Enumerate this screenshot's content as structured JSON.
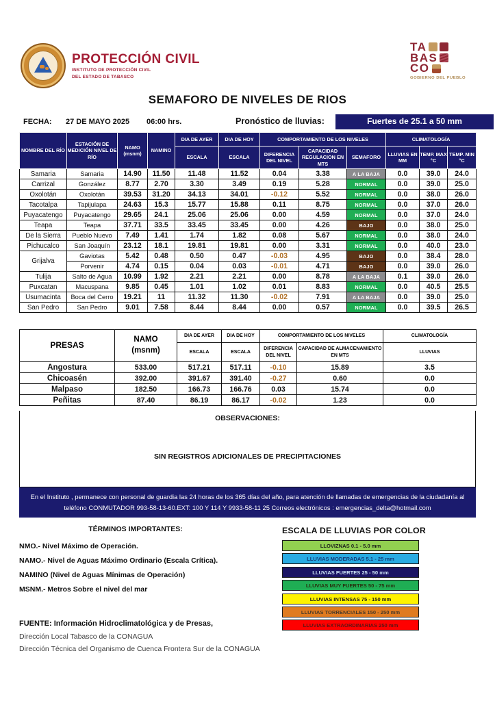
{
  "header": {
    "brand_title": "PROTECCIÓN CIVIL",
    "brand_subtitle1": "INSTITUTO DE PROTECCIÓN CIVIL",
    "brand_subtitle2": "DEL ESTADO DE TABASCO",
    "tabasco_lines": {
      "l1": "TA",
      "l2": "BAS",
      "l3": "CO"
    },
    "tabasco_caption": "GOBIERNO DEL PUEBLO",
    "title": "SEMAFORO DE NIVELES DE RIOS"
  },
  "date_bar": {
    "fecha_label": "FECHA:",
    "fecha_value": "27  DE MAYO  2025",
    "time_value": "06:00 hrs.",
    "pronostico_label": "Pronóstico de lluvias:",
    "pronostico_value": "Fuertes de 25.1 a 50 mm"
  },
  "rivers_table": {
    "headers": {
      "name": "NOMBRE DEL RÍO",
      "station": "ESTACIÓN DE MEDICIÓN NIVEL DE RÍO",
      "namo_1": "NAMO",
      "namo_2": "(msnm)",
      "namino": "NAMINO",
      "dia_ayer": "DIA DE AYER",
      "dia_hoy": "DIA DE HOY",
      "escala": "ESCALA",
      "comportamiento": "COMPORTAMIENTO DE LOS NIVELES",
      "climatologia": "CLIMATOLOGÍA",
      "diferencia": "DIFERENCIA DEL NIVEL",
      "capacidad": "CAPACIDAD REGULACION EN MTS",
      "semaforo": "SEMAFORO",
      "lluvias": "LLUVIAS EN MM",
      "temp_max": "TEMP. MAX °C",
      "temp_min": "TEMP.  MIN °C"
    },
    "rows": [
      {
        "name": "Samaria",
        "station": "Samaria",
        "namo": "14.90",
        "namino": "11.50",
        "ayer": "11.48",
        "hoy": "11.52",
        "dif": "0.04",
        "cap": "3.38",
        "semaforo": "A LA BAJA",
        "lluvia": "0.0",
        "tmax": "39.0",
        "tmin": "24.0"
      },
      {
        "name": "Carrizal",
        "station": "González",
        "namo": "8.77",
        "namino": "2.70",
        "ayer": "3.30",
        "hoy": "3.49",
        "dif": "0.19",
        "cap": "5.28",
        "semaforo": "NORMAL",
        "lluvia": "0.0",
        "tmax": "39.0",
        "tmin": "25.0"
      },
      {
        "name": "Oxolotán",
        "station": "Oxolotán",
        "namo": "39.53",
        "namino": "31.20",
        "ayer": "34.13",
        "hoy": "34.01",
        "dif": "-0.12",
        "cap": "5.52",
        "semaforo": "NORMAL",
        "lluvia": "0.0",
        "tmax": "38.0",
        "tmin": "26.0"
      },
      {
        "name": "Tacotalpa",
        "station": "Tapijulapa",
        "namo": "24.63",
        "namino": "15.3",
        "ayer": "15.77",
        "hoy": "15.88",
        "dif": "0.11",
        "cap": "8.75",
        "semaforo": "NORMAL",
        "lluvia": "0.0",
        "tmax": "37.0",
        "tmin": "26.0"
      },
      {
        "name": "Puyacatengo",
        "station": "Puyacatengo",
        "namo": "29.65",
        "namino": "24.1",
        "ayer": "25.06",
        "hoy": "25.06",
        "dif": "0.00",
        "cap": "4.59",
        "semaforo": "NORMAL",
        "lluvia": "0.0",
        "tmax": "37.0",
        "tmin": "24.0"
      },
      {
        "name": "Teapa",
        "station": "Teapa",
        "namo": "37.71",
        "namino": "33.5",
        "ayer": "33.45",
        "hoy": "33.45",
        "dif": "0.00",
        "cap": "4.26",
        "semaforo": "BAJO",
        "lluvia": "0.0",
        "tmax": "38.0",
        "tmin": "25.0"
      },
      {
        "name": "De la Sierra",
        "station": "Pueblo Nuevo",
        "namo": "7.49",
        "namino": "1.41",
        "ayer": "1.74",
        "hoy": "1.82",
        "dif": "0.08",
        "cap": "5.67",
        "semaforo": "NORMAL",
        "lluvia": "0.0",
        "tmax": "38.0",
        "tmin": "24.0"
      },
      {
        "name": "Pichucalco",
        "station": "San Joaquín",
        "namo": "23.12",
        "namino": "18.1",
        "ayer": "19.81",
        "hoy": "19.81",
        "dif": "0.00",
        "cap": "3.31",
        "semaforo": "NORMAL",
        "lluvia": "0.0",
        "tmax": "40.0",
        "tmin": "23.0"
      },
      {
        "name": "Grijalva",
        "name_rowspan": 2,
        "station": "Gaviotas",
        "namo": "5.42",
        "namino": "0.48",
        "ayer": "0.50",
        "hoy": "0.47",
        "dif": "-0.03",
        "cap": "4.95",
        "semaforo": "BAJO",
        "lluvia": "0.0",
        "tmax": "38.4",
        "tmin": "28.0"
      },
      {
        "name": null,
        "station": "Porvenir",
        "namo": "4.74",
        "namino": "0.15",
        "ayer": "0.04",
        "hoy": "0.03",
        "dif": "-0.01",
        "cap": "4.71",
        "semaforo": "BAJO",
        "lluvia": "0.0",
        "tmax": "39.0",
        "tmin": "26.0"
      },
      {
        "name": "Tulija",
        "station": "Salto de Agua",
        "namo": "10.99",
        "namino": "1.92",
        "ayer": "2.21",
        "hoy": "2.21",
        "dif": "0.00",
        "cap": "8.78",
        "semaforo": "A LA BAJA",
        "lluvia": "0.1",
        "tmax": "39.0",
        "tmin": "26.0"
      },
      {
        "name": "Puxcatan",
        "station": "Macuspana",
        "namo": "9.85",
        "namino": "0.45",
        "ayer": "1.01",
        "hoy": "1.02",
        "dif": "0.01",
        "cap": "8.83",
        "semaforo": "NORMAL",
        "lluvia": "0.0",
        "tmax": "40.5",
        "tmin": "25.5"
      },
      {
        "name": "Usumacinta",
        "station": "Boca del Cerro",
        "namo": "19.21",
        "namino": "11",
        "ayer": "11.32",
        "hoy": "11.30",
        "dif": "-0.02",
        "cap": "7.91",
        "semaforo": "A LA BAJA",
        "lluvia": "0.0",
        "tmax": "39.0",
        "tmin": "25.0"
      },
      {
        "name": "San Pedro",
        "station": "San Pedro",
        "namo": "9.01",
        "namino": "7.58",
        "ayer": "8.44",
        "hoy": "8.44",
        "dif": "0.00",
        "cap": "0.57",
        "semaforo": "NORMAL",
        "lluvia": "0.0",
        "tmax": "39.5",
        "tmin": "26.5"
      }
    ]
  },
  "presas_table": {
    "headers": {
      "presas": "PRESAS",
      "namo_1": "NAMO",
      "namo_2": "(msnm)",
      "dia_ayer": "DIA DE AYER",
      "dia_hoy": "DIA DE HOY",
      "escala": "ESCALA",
      "comportamiento": "COMPORTAMIENTO DE LOS NIVELES",
      "diferencia": "DIFERENCIA DEL NIVEL",
      "capacidad": "CAPACIDAD DE ALMACENAMIENTO EN MTS",
      "climatologia": "CLIMATOLOGÍA",
      "lluvias": "LLUVIAS"
    },
    "rows": [
      {
        "name": "Angostura",
        "namo": "533.00",
        "ayer": "517.21",
        "hoy": "517.11",
        "dif": "-0.10",
        "cap": "15.89",
        "lluvia": "3.5"
      },
      {
        "name": "Chicoasén",
        "namo": "392.00",
        "ayer": "391.67",
        "hoy": "391.40",
        "dif": "-0.27",
        "cap": "0.60",
        "lluvia": "0.0"
      },
      {
        "name": "Malpaso",
        "namo": "182.50",
        "ayer": "166.73",
        "hoy": "166.76",
        "dif": "0.03",
        "cap": "15.74",
        "lluvia": "0.0"
      },
      {
        "name": "Peñitas",
        "namo": "87.40",
        "ayer": "86.19",
        "hoy": "86.17",
        "dif": "-0.02",
        "cap": "1.23",
        "lluvia": "0.0"
      }
    ]
  },
  "observaciones": {
    "title": "OBSERVACIONES:",
    "text": "SIN REGISTROS ADICIONALES DE PRECIPITACIONES"
  },
  "notice": "En el Instituto , permanece con personal de guardia las 24 horas de los 365 días del año, para atención de llamadas de emergencias de la ciudadanía al teléfono  CONMUTADOR  993-58-13-60.EXT: 100 Y 114  Y 9933-58-11 25   Correos electrónicos : emergencias_delta@hotmail.com",
  "terminos": {
    "title": "TÉRMINOS IMPORTANTES:",
    "items": [
      "NMO.- Nivel Máximo de Operación.",
      "NAMO.- Nivel de Aguas Máximo Ordinario (Escala Crítica).",
      "NAMINO (Nivel de Aguas Mínimas de Operación)",
      "MSNM.- Metros Sobre el nivel del mar"
    ]
  },
  "escala_lluvias": {
    "title": "ESCALA DE LLUVIAS POR COLOR",
    "items": [
      {
        "label": "LLOVIZNAS   0.1 -  5.0 mm",
        "bg": "#92d050",
        "fg": "#1a1a1a"
      },
      {
        "label": "LLUVIAS MODERADAS 5.1 - 25 mm",
        "bg": "#29abe2",
        "fg": "#123a75"
      },
      {
        "label": "LLUVIAS FUERTES       25 - 50 mm",
        "bg": "#1b1464",
        "fg": "#cfe6f7"
      },
      {
        "label": "LLUVIAS MUY FUERTES   50 - 75 mm",
        "bg": "#1fae54",
        "fg": "#27340f"
      },
      {
        "label": "LLUVIAS INTENSAS    75 - 150 mm",
        "bg": "#fff200",
        "fg": "#1a1a1a"
      },
      {
        "label": "LLUVIAS TORRENCIALES  150 - 250  mm",
        "bg": "#e07b20",
        "fg": "#4a3a28"
      },
      {
        "label": "LLUVIAS EXTRAORDINARIAS 250  mm",
        "bg": "#ff0000",
        "fg": "#5e1414"
      }
    ]
  },
  "fuente": {
    "line1": "FUENTE: Información Hidroclimatológica y de Presas,",
    "line2": "Dirección Local Tabasco de la CONAGUA",
    "line3": "Dirección Técnica del Organismo de Cuenca Frontera Sur de la CONAGUA"
  },
  "colors": {
    "navy": "#1b1b6e",
    "negative_text": "#b06f25",
    "brand_red": "#a41e35",
    "tabasco_maroon": "#8e2734",
    "tabasco_gold": "#b08d57",
    "semaforo": {
      "NORMAL": "#1fae54",
      "A LA BAJA": "#8c8c8f",
      "BAJO": "#5d3417"
    }
  }
}
